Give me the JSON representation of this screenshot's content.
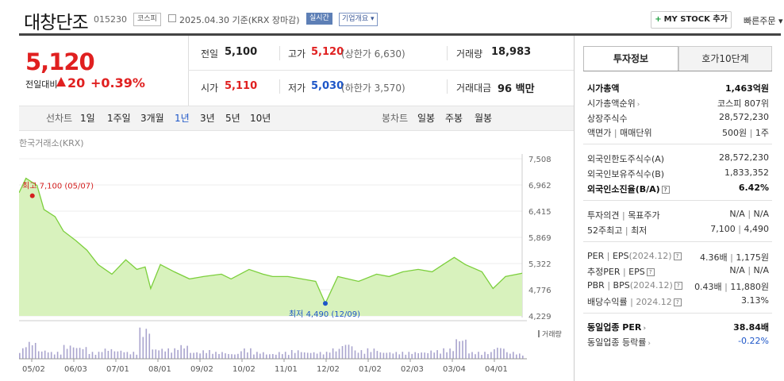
{
  "header": {
    "stock_name": "대창단조",
    "stock_code": "015230",
    "market": "코스피",
    "as_of": "2025.04.30  기준(KRX 장마감)",
    "realtime_badge": "실시간",
    "overview_button": "기업개요 ▾",
    "mystock_button": "MY STOCK 추가",
    "quick_order": "빠른주문 ▾"
  },
  "quote": {
    "price": "5,120",
    "change_label": "전일대비",
    "change_value": "20",
    "change_pct": "+0.39%",
    "prev_close_label": "전일",
    "prev_close": "5,100",
    "high_label": "고가",
    "high": "5,120",
    "upper_limit": "(상한가 6,630)",
    "volume_label": "거래량",
    "volume": "18,983",
    "open_label": "시가",
    "open": "5,110",
    "low_label": "저가",
    "low": "5,030",
    "lower_limit": "(하한가 3,570)",
    "amount_label": "거래대금",
    "amount": "96 백만"
  },
  "periods": {
    "line_label": "선차트",
    "line_items": [
      "1일",
      "1주일",
      "3개월",
      "1년",
      "3년",
      "5년",
      "10년"
    ],
    "selected": "1년",
    "candle_label": "봉차트",
    "candle_items": [
      "일봉",
      "주봉",
      "월봉"
    ]
  },
  "chart_data": {
    "type": "area",
    "source": "한국거래소(KRX)",
    "high_annotation": "최고  7,100 (05/07)",
    "low_annotation": "최저  4,490 (12/09)",
    "volume_label": "거래량",
    "y_ticks": [
      "7,508",
      "6,962",
      "6,415",
      "5,869",
      "5,322",
      "4,776",
      "4,229"
    ],
    "ylim": [
      4229,
      7508
    ],
    "x_ticks": [
      "05/02",
      "06/03",
      "07/01",
      "08/01",
      "09/02",
      "10/02",
      "11/01",
      "12/02",
      "01/02",
      "02/03",
      "03/04",
      "04/01"
    ],
    "x": [
      "2024-05-02",
      "2024-05-07",
      "2024-05-15",
      "2024-05-20",
      "2024-05-28",
      "2024-06-03",
      "2024-06-12",
      "2024-06-20",
      "2024-06-28",
      "2024-07-08",
      "2024-07-18",
      "2024-07-26",
      "2024-08-01",
      "2024-08-05",
      "2024-08-12",
      "2024-08-22",
      "2024-09-02",
      "2024-09-12",
      "2024-09-25",
      "2024-10-02",
      "2024-10-15",
      "2024-10-25",
      "2024-11-01",
      "2024-11-12",
      "2024-11-22",
      "2024-12-02",
      "2024-12-09",
      "2024-12-18",
      "2025-01-02",
      "2025-01-15",
      "2025-01-24",
      "2025-02-03",
      "2025-02-14",
      "2025-02-24",
      "2025-03-04",
      "2025-03-12",
      "2025-03-20",
      "2025-04-01",
      "2025-04-09",
      "2025-04-18",
      "2025-04-30"
    ],
    "price": [
      6800,
      7100,
      6950,
      6450,
      6300,
      6000,
      5800,
      5600,
      5300,
      5100,
      5400,
      5200,
      5250,
      4800,
      5300,
      5150,
      5000,
      5050,
      5100,
      5000,
      5200,
      5100,
      5050,
      5050,
      5000,
      4950,
      4490,
      5050,
      4950,
      5100,
      5050,
      5150,
      5200,
      5150,
      5300,
      5450,
      5300,
      5150,
      4800,
      5050,
      5120
    ],
    "volume_rel": [
      0.3,
      0.5,
      0.25,
      0.2,
      0.4,
      0.35,
      0.2,
      0.3,
      0.25,
      0.2,
      0.9,
      0.3,
      0.3,
      0.4,
      0.2,
      0.25,
      0.2,
      0.15,
      0.3,
      0.2,
      0.15,
      0.2,
      0.25,
      0.2,
      0.2,
      0.3,
      0.45,
      0.25,
      0.3,
      0.2,
      0.2,
      0.2,
      0.2,
      0.25,
      0.3,
      0.6,
      0.2,
      0.2,
      0.35,
      0.2,
      0.15
    ]
  },
  "tabs": {
    "invest": "투자정보",
    "hoga": "호가10단계"
  },
  "invest": {
    "mcap_label": "시가총액",
    "mcap": "1,463억원",
    "mcap_rank_label": "시가총액순위",
    "mcap_rank": "코스피 807위",
    "shares_label": "상장주식수",
    "shares": "28,572,230",
    "par_label": "액면가",
    "unit_label": "매매단위",
    "par": "500원",
    "unit": "1주",
    "foreign_limit_label": "외국인한도주식수(A)",
    "foreign_limit": "28,572,230",
    "foreign_hold_label": "외국인보유주식수(B)",
    "foreign_hold": "1,833,352",
    "foreign_ratio_label": "외국인소진율(B/A)",
    "foreign_ratio": "6.42%",
    "opinion_label": "투자의견",
    "target_label": "목표주가",
    "opinion": "N/A",
    "target": "N/A",
    "w52high_label": "52주최고",
    "w52low_label": "최저",
    "w52high": "7,100",
    "w52low": "4,490",
    "per_label": "PER",
    "eps_label": "EPS",
    "eps_year": "(2024.12)",
    "per": "4.36배",
    "eps": "1,175원",
    "est_per_label": "추정PER",
    "est_eps_label": "EPS",
    "est_per": "N/A",
    "est_eps": "N/A",
    "pbr_label": "PBR",
    "bps_label": "BPS",
    "bps_year": "(2024.12)",
    "pbr": "0.43배",
    "bps": "11,880원",
    "div_label": "배당수익률",
    "div_year": "2024.12",
    "div": "3.13%",
    "ind_per_label": "동일업종 PER",
    "ind_per": "38.84배",
    "ind_rate_label": "동일업종 등락률",
    "ind_rate": "-0.22%"
  }
}
